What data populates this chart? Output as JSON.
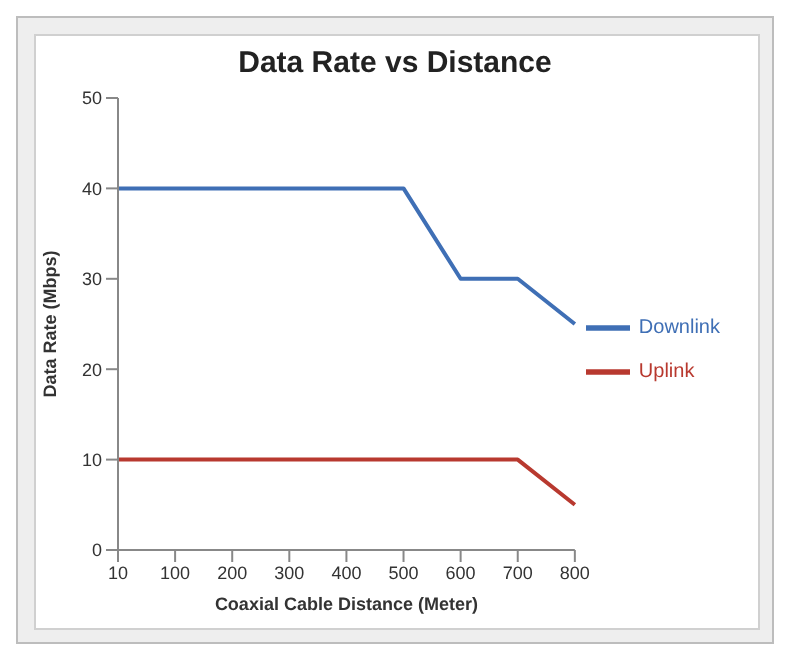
{
  "chart_data": {
    "type": "line",
    "title": "Data Rate vs Distance",
    "xlabel": "Coaxial Cable Distance (Meter)",
    "ylabel": "Data Rate (Mbps)",
    "categories": [
      "10",
      "100",
      "200",
      "300",
      "400",
      "500",
      "600",
      "700",
      "800"
    ],
    "series": [
      {
        "name": "Downlink",
        "color": "#3f6fb5",
        "values": [
          40,
          40,
          40,
          40,
          40,
          40,
          30,
          30,
          25
        ]
      },
      {
        "name": "Uplink",
        "color": "#b8392f",
        "values": [
          10,
          10,
          10,
          10,
          10,
          10,
          10,
          10,
          5
        ]
      }
    ],
    "ylim": [
      0,
      50
    ],
    "yticks": [
      0,
      10,
      20,
      30,
      40,
      50
    ],
    "grid": false,
    "legend": "right",
    "marker": "none",
    "line_style": "solid"
  }
}
